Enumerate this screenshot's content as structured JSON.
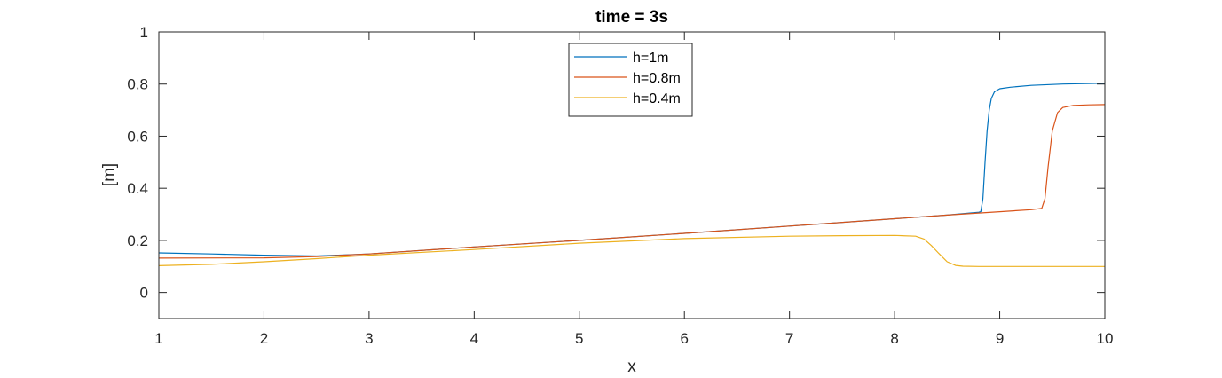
{
  "chart_data": {
    "type": "line",
    "title": "time = 3s",
    "xlabel": "x",
    "ylabel": "[m]",
    "xlim": [
      1,
      10
    ],
    "ylim": [
      -0.1,
      1
    ],
    "xticks": [
      1,
      2,
      3,
      4,
      5,
      6,
      7,
      8,
      9,
      10
    ],
    "yticks": [
      0,
      0.2,
      0.4,
      0.6,
      0.8,
      1
    ],
    "xtick_labels": [
      "1",
      "2",
      "3",
      "4",
      "5",
      "6",
      "7",
      "8",
      "9",
      "10"
    ],
    "ytick_labels": [
      "0",
      "0.2",
      "0.4",
      "0.6",
      "0.8",
      "1"
    ],
    "grid": false,
    "box": true,
    "legend_position": "top-center",
    "series": [
      {
        "name": "h=1m",
        "color": "#0072BD",
        "x": [
          1.0,
          1.5,
          2.0,
          2.5,
          3.0,
          4.0,
          5.0,
          6.0,
          7.0,
          8.0,
          8.5,
          8.8,
          8.82,
          8.84,
          8.86,
          8.88,
          8.9,
          8.92,
          8.95,
          9.0,
          9.1,
          9.3,
          9.6,
          10.0
        ],
        "y": [
          0.152,
          0.148,
          0.143,
          0.14,
          0.148,
          0.175,
          0.2,
          0.227,
          0.255,
          0.283,
          0.297,
          0.308,
          0.31,
          0.36,
          0.5,
          0.62,
          0.7,
          0.745,
          0.77,
          0.782,
          0.788,
          0.795,
          0.8,
          0.803
        ]
      },
      {
        "name": "h=0.8m",
        "color": "#D95319",
        "x": [
          1.0,
          2.0,
          2.5,
          3.0,
          4.0,
          5.0,
          6.0,
          7.0,
          8.0,
          8.5,
          9.0,
          9.3,
          9.4,
          9.43,
          9.46,
          9.5,
          9.55,
          9.6,
          9.7,
          9.85,
          10.0
        ],
        "y": [
          0.132,
          0.133,
          0.138,
          0.148,
          0.175,
          0.2,
          0.227,
          0.255,
          0.283,
          0.297,
          0.31,
          0.318,
          0.323,
          0.36,
          0.48,
          0.62,
          0.69,
          0.71,
          0.718,
          0.72,
          0.721
        ]
      },
      {
        "name": "h=0.4m",
        "color": "#EDB120",
        "x": [
          1.0,
          1.5,
          2.0,
          2.5,
          3.0,
          4.0,
          5.0,
          6.0,
          7.0,
          7.5,
          8.0,
          8.2,
          8.28,
          8.35,
          8.42,
          8.5,
          8.58,
          8.65,
          8.8,
          9.0,
          9.5,
          10.0
        ],
        "y": [
          0.103,
          0.108,
          0.118,
          0.13,
          0.143,
          0.165,
          0.189,
          0.207,
          0.216,
          0.218,
          0.219,
          0.216,
          0.205,
          0.18,
          0.15,
          0.118,
          0.104,
          0.101,
          0.1,
          0.1,
          0.1,
          0.1
        ]
      }
    ]
  }
}
